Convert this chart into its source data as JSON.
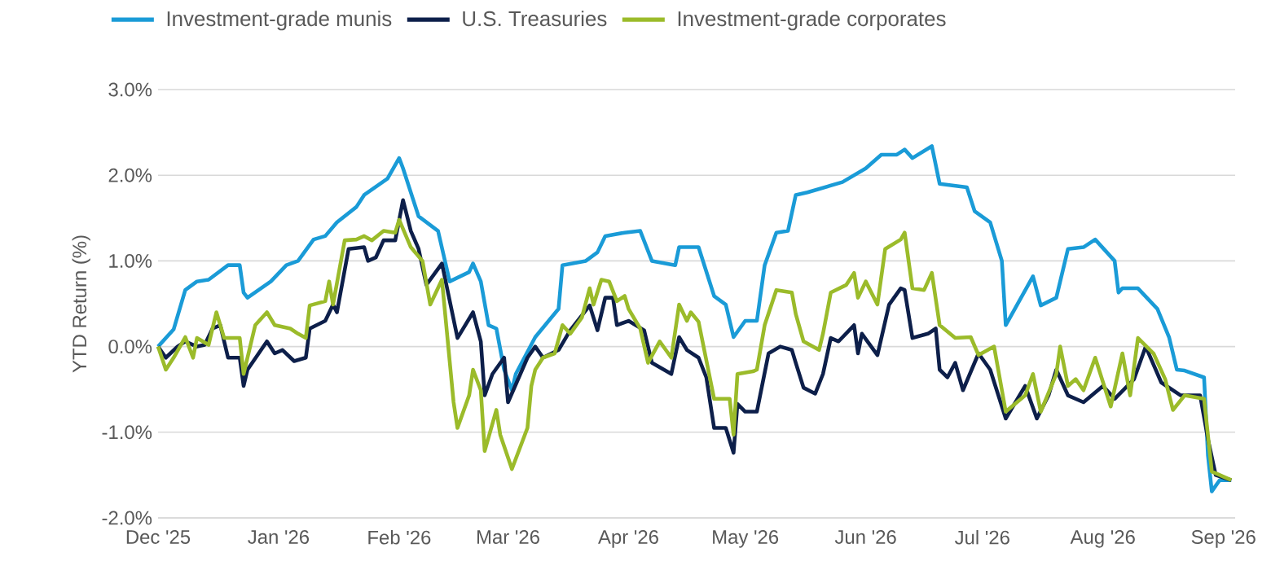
{
  "chart_data": {
    "type": "line",
    "ylabel": "YTD Return (%)",
    "xlim": [
      "2025-12-01",
      "2026-09-04"
    ],
    "xticks": [
      {
        "value": "2025-12-01",
        "label": "Dec '25"
      },
      {
        "value": "2026-01-01",
        "label": "Jan '26"
      },
      {
        "value": "2026-02-01",
        "label": "Feb '26"
      },
      {
        "value": "2026-03-01",
        "label": "Mar '26"
      },
      {
        "value": "2026-04-01",
        "label": "Apr '26"
      },
      {
        "value": "2026-05-01",
        "label": "May '26"
      },
      {
        "value": "2026-06-01",
        "label": "Jun '26"
      },
      {
        "value": "2026-07-01",
        "label": "Jul '26"
      },
      {
        "value": "2026-08-01",
        "label": "Aug '26"
      },
      {
        "value": "2026-09-01",
        "label": "Sep '26"
      }
    ],
    "ylim": [
      -2,
      3
    ],
    "yticks": [
      {
        "value": -2,
        "label": "-2.0%"
      },
      {
        "value": -1,
        "label": "-1.0%"
      },
      {
        "value": 0,
        "label": "0.0%"
      },
      {
        "value": 1,
        "label": "1.0%"
      },
      {
        "value": 2,
        "label": "2.0%"
      },
      {
        "value": 3,
        "label": "3.0%"
      }
    ],
    "grid": "y",
    "legend": "top left",
    "series": [
      {
        "name": "Investment-grade munis",
        "color": "#1a9bd7",
        "x": [
          "2025-12-01",
          "2025-12-05",
          "2025-12-08",
          "2025-12-11",
          "2025-12-14",
          "2025-12-19",
          "2025-12-22",
          "2025-12-23",
          "2025-12-24",
          "2025-12-30",
          "2026-01-03",
          "2026-01-06",
          "2026-01-10",
          "2026-01-13",
          "2026-01-16",
          "2026-01-21",
          "2026-01-23",
          "2026-01-29",
          "2026-02-01",
          "2026-02-02",
          "2026-02-06",
          "2026-02-11",
          "2026-02-14",
          "2026-02-19",
          "2026-02-20",
          "2026-02-22",
          "2026-02-24",
          "2026-02-26",
          "2026-02-28",
          "2026-03-02",
          "2026-03-03",
          "2026-03-08",
          "2026-03-14",
          "2026-03-15",
          "2026-03-21",
          "2026-03-24",
          "2026-03-26",
          "2026-03-31",
          "2026-04-04",
          "2026-04-07",
          "2026-04-13",
          "2026-04-14",
          "2026-04-19",
          "2026-04-23",
          "2026-04-26",
          "2026-04-28",
          "2026-05-01",
          "2026-05-04",
          "2026-05-06",
          "2026-05-09",
          "2026-05-12",
          "2026-05-14",
          "2026-05-17",
          "2026-05-26",
          "2026-06-01",
          "2026-06-05",
          "2026-06-09",
          "2026-06-11",
          "2026-06-13",
          "2026-06-18",
          "2026-06-20",
          "2026-06-27",
          "2026-06-29",
          "2026-07-03",
          "2026-07-06",
          "2026-07-07",
          "2026-07-14",
          "2026-07-16",
          "2026-07-20",
          "2026-07-23",
          "2026-07-27",
          "2026-07-30",
          "2026-08-04",
          "2026-08-05",
          "2026-08-06",
          "2026-08-10",
          "2026-08-15",
          "2026-08-18",
          "2026-08-20",
          "2026-08-22",
          "2026-08-27",
          "2026-08-28",
          "2026-08-29",
          "2026-08-31",
          "2026-09-03"
        ],
        "values": [
          0,
          0.2,
          0.66,
          0.76,
          0.78,
          0.95,
          0.95,
          0.63,
          0.57,
          0.76,
          0.95,
          1.0,
          1.25,
          1.29,
          1.45,
          1.63,
          1.77,
          1.96,
          2.2,
          2.08,
          1.52,
          1.35,
          0.76,
          0.87,
          0.97,
          0.76,
          0.25,
          0.21,
          -0.27,
          -0.51,
          -0.32,
          0.11,
          0.44,
          0.95,
          1.0,
          1.1,
          1.29,
          1.33,
          1.35,
          1.0,
          0.95,
          1.16,
          1.16,
          0.59,
          0.49,
          0.11,
          0.3,
          0.3,
          0.95,
          1.33,
          1.35,
          1.77,
          1.8,
          1.92,
          2.08,
          2.24,
          2.24,
          2.3,
          2.2,
          2.34,
          1.9,
          1.86,
          1.58,
          1.45,
          1.0,
          0.25,
          0.82,
          0.48,
          0.57,
          1.14,
          1.16,
          1.25,
          1.0,
          0.63,
          0.68,
          0.68,
          0.44,
          0.11,
          -0.27,
          -0.28,
          -0.36,
          -1.27,
          -1.69,
          -1.56,
          -1.56
        ]
      },
      {
        "name": "U.S. Treasuries",
        "color": "#0d1f4a",
        "x": [
          "2025-12-01",
          "2025-12-03",
          "2025-12-06",
          "2025-12-08",
          "2025-12-11",
          "2025-12-13",
          "2025-12-15",
          "2025-12-17",
          "2025-12-19",
          "2025-12-22",
          "2025-12-23",
          "2025-12-24",
          "2025-12-29",
          "2025-12-31",
          "2026-01-02",
          "2026-01-05",
          "2026-01-08",
          "2026-01-09",
          "2026-01-13",
          "2026-01-15",
          "2026-01-16",
          "2026-01-19",
          "2026-01-23",
          "2026-01-24",
          "2026-01-26",
          "2026-01-28",
          "2026-01-31",
          "2026-02-02",
          "2026-02-04",
          "2026-02-06",
          "2026-02-08",
          "2026-02-12",
          "2026-02-16",
          "2026-02-20",
          "2026-02-22",
          "2026-02-23",
          "2026-02-25",
          "2026-02-28",
          "2026-03-01",
          "2026-03-06",
          "2026-03-08",
          "2026-03-10",
          "2026-03-14",
          "2026-03-17",
          "2026-03-22",
          "2026-03-24",
          "2026-03-26",
          "2026-03-28",
          "2026-03-29",
          "2026-04-01",
          "2026-04-05",
          "2026-04-07",
          "2026-04-12",
          "2026-04-14",
          "2026-04-16",
          "2026-04-19",
          "2026-04-21",
          "2026-04-23",
          "2026-04-26",
          "2026-04-28",
          "2026-04-29",
          "2026-05-01",
          "2026-05-04",
          "2026-05-07",
          "2026-05-10",
          "2026-05-13",
          "2026-05-14",
          "2026-05-16",
          "2026-05-19",
          "2026-05-21",
          "2026-05-23",
          "2026-05-25",
          "2026-05-29",
          "2026-05-30",
          "2026-05-31",
          "2026-06-04",
          "2026-06-07",
          "2026-06-10",
          "2026-06-11",
          "2026-06-13",
          "2026-06-17",
          "2026-06-19",
          "2026-06-20",
          "2026-06-22",
          "2026-06-24",
          "2026-06-26",
          "2026-06-30",
          "2026-07-03",
          "2026-07-07",
          "2026-07-12",
          "2026-07-15",
          "2026-07-18",
          "2026-07-20",
          "2026-07-23",
          "2026-07-27",
          "2026-08-01",
          "2026-08-04",
          "2026-08-09",
          "2026-08-12",
          "2026-08-16",
          "2026-08-19",
          "2026-08-21",
          "2026-08-26",
          "2026-08-28",
          "2026-08-30",
          "2026-09-03"
        ],
        "values": [
          0,
          -0.13,
          0,
          0.06,
          0,
          0.02,
          0.21,
          0.25,
          -0.13,
          -0.13,
          -0.46,
          -0.27,
          0.06,
          -0.08,
          -0.04,
          -0.17,
          -0.13,
          0.21,
          0.3,
          0.49,
          0.4,
          1.14,
          1.16,
          1.0,
          1.04,
          1.24,
          1.24,
          1.71,
          1.35,
          1.14,
          0.72,
          0.97,
          0.1,
          0.4,
          0.06,
          -0.57,
          -0.32,
          -0.13,
          -0.65,
          -0.13,
          0,
          -0.13,
          -0.04,
          0.19,
          0.48,
          0.19,
          0.57,
          0.57,
          0.25,
          0.3,
          0.19,
          -0.19,
          -0.32,
          0.11,
          -0.04,
          -0.13,
          -0.36,
          -0.95,
          -0.95,
          -1.24,
          -0.67,
          -0.76,
          -0.76,
          -0.08,
          0,
          -0.04,
          -0.19,
          -0.48,
          -0.55,
          -0.32,
          0.1,
          0.06,
          0.25,
          -0.08,
          0.15,
          -0.1,
          0.49,
          0.68,
          0.66,
          0.1,
          0.15,
          0.21,
          -0.27,
          -0.36,
          -0.19,
          -0.51,
          -0.08,
          -0.27,
          -0.84,
          -0.46,
          -0.84,
          -0.57,
          -0.27,
          -0.57,
          -0.65,
          -0.46,
          -0.61,
          -0.38,
          0,
          -0.42,
          -0.51,
          -0.57,
          -0.57,
          -1.08,
          -1.5,
          -1.56
        ]
      },
      {
        "name": "Investment-grade corporates",
        "color": "#9bbb2a",
        "x": [
          "2025-12-01",
          "2025-12-03",
          "2025-12-05",
          "2025-12-08",
          "2025-12-10",
          "2025-12-11",
          "2025-12-14",
          "2025-12-16",
          "2025-12-18",
          "2025-12-22",
          "2025-12-23",
          "2025-12-26",
          "2025-12-29",
          "2025-12-31",
          "2026-01-04",
          "2026-01-06",
          "2026-01-08",
          "2026-01-09",
          "2026-01-13",
          "2026-01-14",
          "2026-01-15",
          "2026-01-18",
          "2026-01-21",
          "2026-01-23",
          "2026-01-25",
          "2026-01-28",
          "2026-01-31",
          "2026-02-01",
          "2026-02-04",
          "2026-02-07",
          "2026-02-09",
          "2026-02-12",
          "2026-02-15",
          "2026-02-16",
          "2026-02-19",
          "2026-02-20",
          "2026-02-22",
          "2026-02-23",
          "2026-02-26",
          "2026-02-27",
          "2026-03-02",
          "2026-03-06",
          "2026-03-07",
          "2026-03-08",
          "2026-03-10",
          "2026-03-13",
          "2026-03-15",
          "2026-03-17",
          "2026-03-20",
          "2026-03-22",
          "2026-03-23",
          "2026-03-25",
          "2026-03-27",
          "2026-03-29",
          "2026-03-31",
          "2026-04-01",
          "2026-04-04",
          "2026-04-06",
          "2026-04-09",
          "2026-04-12",
          "2026-04-14",
          "2026-04-16",
          "2026-04-17",
          "2026-04-19",
          "2026-04-23",
          "2026-04-27",
          "2026-04-28",
          "2026-04-29",
          "2026-05-03",
          "2026-05-04",
          "2026-05-06",
          "2026-05-09",
          "2026-05-13",
          "2026-05-14",
          "2026-05-16",
          "2026-05-20",
          "2026-05-21",
          "2026-05-23",
          "2026-05-27",
          "2026-05-29",
          "2026-05-30",
          "2026-06-01",
          "2026-06-04",
          "2026-06-06",
          "2026-06-10",
          "2026-06-11",
          "2026-06-13",
          "2026-06-16",
          "2026-06-18",
          "2026-06-20",
          "2026-06-24",
          "2026-06-28",
          "2026-06-30",
          "2026-07-04",
          "2026-07-07",
          "2026-07-12",
          "2026-07-14",
          "2026-07-16",
          "2026-07-20",
          "2026-07-21",
          "2026-07-23",
          "2026-07-25",
          "2026-07-27",
          "2026-07-30",
          "2026-08-03",
          "2026-08-06",
          "2026-08-08",
          "2026-08-10",
          "2026-08-14",
          "2026-08-17",
          "2026-08-19",
          "2026-08-22",
          "2026-08-27",
          "2026-08-29",
          "2026-09-03"
        ],
        "values": [
          0,
          -0.27,
          -0.13,
          0.11,
          -0.13,
          0.1,
          0.02,
          0.4,
          0.1,
          0.1,
          -0.32,
          0.25,
          0.4,
          0.25,
          0.21,
          0.15,
          0.1,
          0.48,
          0.53,
          0.76,
          0.49,
          1.24,
          1.25,
          1.29,
          1.24,
          1.35,
          1.33,
          1.48,
          1.16,
          1.0,
          0.49,
          0.78,
          -0.65,
          -0.95,
          -0.57,
          -0.27,
          -0.51,
          -1.22,
          -0.74,
          -1.03,
          -1.43,
          -0.95,
          -0.46,
          -0.27,
          -0.13,
          -0.08,
          0.25,
          0.15,
          0.34,
          0.68,
          0.49,
          0.78,
          0.76,
          0.53,
          0.59,
          0.44,
          0.21,
          -0.19,
          0.06,
          -0.13,
          0.49,
          0.3,
          0.4,
          0.29,
          -0.61,
          -0.61,
          -1.03,
          -0.32,
          -0.29,
          -0.27,
          0.25,
          0.66,
          0.63,
          0.38,
          0.06,
          -0.04,
          0.15,
          0.63,
          0.72,
          0.86,
          0.57,
          0.76,
          0.49,
          1.14,
          1.25,
          1.33,
          0.68,
          0.66,
          0.86,
          0.25,
          0.1,
          0.11,
          -0.1,
          0,
          -0.76,
          -0.57,
          -0.32,
          -0.76,
          -0.32,
          0,
          -0.46,
          -0.38,
          -0.51,
          -0.13,
          -0.7,
          -0.08,
          -0.57,
          0.1,
          -0.08,
          -0.38,
          -0.74,
          -0.57,
          -0.61,
          -1.46,
          -1.56
        ]
      }
    ]
  }
}
